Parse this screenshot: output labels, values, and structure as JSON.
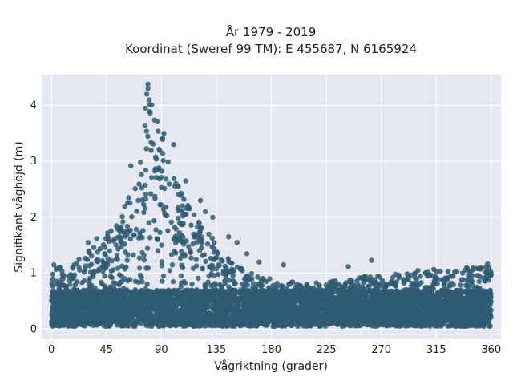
{
  "chart_data": {
    "type": "scatter",
    "title_line1": "År 1979 - 2019",
    "title_line2": "Koordinat (Sweref 99 TM): E 455687, N 6165924",
    "xlabel": "Vågriktning (grader)",
    "ylabel": "Signifikant våghöjd (m)",
    "xlim": [
      -8,
      368
    ],
    "ylim": [
      -0.18,
      4.55
    ],
    "xticks": [
      0,
      45,
      90,
      135,
      180,
      225,
      270,
      315,
      360
    ],
    "yticks": [
      0,
      1,
      2,
      3,
      4
    ],
    "grid": true,
    "point_color": "#2f5b73",
    "plot_background": "#e5e8f0",
    "envelope": {
      "x": [
        0,
        10,
        20,
        30,
        40,
        50,
        55,
        60,
        65,
        70,
        75,
        80,
        85,
        90,
        95,
        100,
        105,
        110,
        115,
        120,
        125,
        130,
        135,
        140,
        145,
        150,
        160,
        170,
        180,
        190,
        200,
        210,
        225,
        240,
        255,
        270,
        285,
        300,
        315,
        330,
        345,
        360
      ],
      "ymax": [
        1.15,
        1.1,
        1.2,
        1.4,
        1.55,
        1.8,
        1.95,
        2.3,
        2.65,
        3.0,
        3.5,
        4.35,
        3.75,
        3.5,
        3.1,
        2.8,
        2.5,
        2.35,
        2.15,
        1.95,
        1.8,
        1.7,
        1.55,
        1.4,
        1.3,
        1.2,
        1.05,
        0.95,
        0.9,
        0.85,
        0.85,
        0.82,
        0.85,
        0.9,
        0.95,
        0.95,
        1.0,
        1.0,
        1.05,
        1.05,
        1.1,
        1.15
      ],
      "ymin": 0.05
    },
    "highlight_points": [
      {
        "x": 79,
        "y": 4.38
      },
      {
        "x": 79,
        "y": 4.3
      },
      {
        "x": 78,
        "y": 4.2
      },
      {
        "x": 80,
        "y": 4.1
      },
      {
        "x": 77,
        "y": 3.95
      },
      {
        "x": 87,
        "y": 3.72
      },
      {
        "x": 92,
        "y": 3.5
      },
      {
        "x": 65,
        "y": 2.92
      },
      {
        "x": 100,
        "y": 3.3
      },
      {
        "x": 110,
        "y": 2.65
      },
      {
        "x": 122,
        "y": 2.3
      },
      {
        "x": 126,
        "y": 2.1
      },
      {
        "x": 132,
        "y": 2.0
      },
      {
        "x": 145,
        "y": 1.65
      },
      {
        "x": 152,
        "y": 1.55
      },
      {
        "x": 160,
        "y": 1.35
      },
      {
        "x": 170,
        "y": 1.2
      },
      {
        "x": 190,
        "y": 1.15
      },
      {
        "x": 243,
        "y": 1.12
      },
      {
        "x": 262,
        "y": 1.23
      },
      {
        "x": 300,
        "y": 1.05
      },
      {
        "x": 313,
        "y": 1.07
      },
      {
        "x": 340,
        "y": 1.1
      },
      {
        "x": 357,
        "y": 1.17
      },
      {
        "x": 2,
        "y": 1.15
      },
      {
        "x": 30,
        "y": 1.55
      },
      {
        "x": 37,
        "y": 1.62
      },
      {
        "x": 46,
        "y": 1.72
      }
    ],
    "point_count": 6000
  }
}
